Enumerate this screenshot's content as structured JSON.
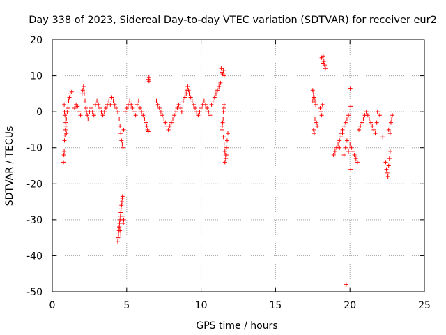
{
  "chart_data": {
    "type": "scatter",
    "title": "Day 338 of 2023, Sidereal Day-to-day VTEC variation (SDTVAR) for receiver eur2",
    "xlabel": "GPS time / hours",
    "ylabel": "SDTVAR / TECUs",
    "xlim": [
      0,
      25
    ],
    "ylim": [
      -50,
      20
    ],
    "xticks": [
      0,
      5,
      10,
      15,
      20,
      25
    ],
    "yticks": [
      -50,
      -40,
      -30,
      -20,
      -10,
      0,
      10,
      20
    ],
    "grid": true,
    "marker": "+",
    "color": "#ff0000",
    "series": [
      {
        "name": "SDTVAR",
        "x": [
          0.75,
          0.78,
          0.8,
          0.82,
          0.85,
          0.88,
          0.9,
          0.95,
          1.0,
          1.05,
          1.1,
          1.15,
          1.2,
          1.3,
          0.8,
          0.82,
          0.85,
          0.9,
          0.92,
          0.95,
          1.5,
          1.6,
          1.7,
          1.8,
          1.9,
          2.0,
          2.05,
          2.1,
          2.15,
          2.2,
          2.25,
          2.3,
          2.35,
          2.4,
          2.5,
          2.6,
          2.7,
          2.8,
          2.9,
          3.0,
          3.1,
          3.2,
          3.3,
          3.4,
          3.5,
          3.6,
          3.7,
          3.8,
          3.9,
          4.0,
          4.1,
          4.2,
          4.3,
          4.4,
          4.5,
          4.55,
          4.6,
          4.65,
          4.7,
          4.75,
          4.4,
          4.42,
          4.45,
          4.48,
          4.5,
          4.52,
          4.55,
          4.58,
          4.6,
          4.62,
          4.65,
          4.68,
          4.7,
          4.72,
          4.75,
          4.78,
          4.8,
          4.5,
          4.55,
          4.6,
          4.8,
          4.9,
          5.0,
          5.1,
          5.2,
          5.3,
          5.4,
          5.5,
          5.6,
          5.7,
          5.8,
          5.9,
          6.0,
          6.1,
          6.2,
          6.3,
          6.35,
          6.4,
          6.45,
          6.5,
          6.5,
          6.45,
          7.0,
          7.1,
          7.2,
          7.3,
          7.4,
          7.5,
          7.6,
          7.7,
          7.8,
          7.9,
          8.0,
          8.1,
          8.2,
          8.3,
          8.4,
          8.5,
          8.6,
          8.7,
          8.8,
          8.9,
          9.0,
          9.05,
          9.1,
          9.15,
          9.2,
          9.3,
          9.4,
          9.5,
          9.6,
          9.7,
          9.8,
          9.9,
          10.0,
          10.1,
          10.2,
          10.3,
          10.4,
          10.5,
          10.6,
          10.7,
          10.8,
          10.9,
          11.0,
          11.1,
          11.2,
          11.3,
          11.35,
          11.4,
          11.45,
          11.5,
          11.55,
          11.6,
          11.65,
          11.7,
          11.75,
          11.8,
          11.5,
          11.55,
          11.4,
          11.42,
          11.45,
          11.48,
          11.5,
          11.52,
          11.55,
          11.6,
          11.65,
          11.7,
          17.5,
          17.55,
          17.6,
          17.65,
          17.7,
          17.75,
          17.8,
          17.55,
          17.6,
          17.65,
          17.5,
          17.55,
          18.0,
          18.05,
          18.1,
          18.15,
          18.2,
          18.25,
          18.3,
          18.35,
          18.1,
          18.2,
          18.9,
          19.0,
          19.1,
          19.2,
          19.3,
          19.4,
          19.5,
          19.6,
          19.7,
          19.8,
          19.9,
          20.0,
          19.3,
          19.4,
          19.5,
          19.6,
          19.7,
          19.8,
          19.9,
          20.05,
          19.75,
          20.05,
          20.02,
          20.1,
          20.2,
          20.3,
          20.4,
          20.5,
          20.6,
          20.7,
          20.8,
          20.9,
          21.0,
          21.1,
          21.2,
          21.3,
          21.4,
          21.5,
          21.6,
          21.7,
          21.8,
          21.85,
          22.0,
          22.2,
          22.4,
          22.45,
          22.5,
          22.55,
          22.6,
          22.65,
          22.7,
          22.75,
          22.8,
          22.85,
          22.6,
          22.7
        ],
        "y": [
          -14,
          -12,
          -11,
          -8,
          -6.5,
          -5,
          -3,
          -2,
          0,
          1,
          3,
          4,
          5,
          5.5,
          2,
          0,
          -1,
          -2,
          -4,
          -6,
          1,
          2,
          1.5,
          0,
          -1,
          5,
          6,
          7,
          5,
          3,
          1,
          0,
          -1,
          -2,
          0,
          1,
          0,
          -1,
          2,
          3,
          2,
          1,
          0,
          -1,
          0,
          1,
          2,
          3,
          2,
          4,
          3,
          2,
          1,
          0,
          -2,
          -4,
          -6,
          -8,
          -9,
          -10,
          -36,
          -35,
          -34,
          -33,
          -32,
          -31,
          -30,
          -29,
          -28,
          -27,
          -26,
          -25,
          -24,
          -23.5,
          -29,
          -31,
          -30,
          -32,
          -33,
          -34,
          -5,
          0,
          1,
          2,
          3,
          2,
          1,
          0,
          -1,
          2,
          3,
          1,
          0,
          -1,
          -2,
          -3,
          -4,
          -5,
          9,
          9.5,
          8.5,
          -5.5,
          3,
          2,
          1,
          0,
          -1,
          -2,
          -3,
          -4,
          -5,
          -4,
          -3,
          -2,
          -1,
          0,
          1,
          2,
          1,
          0,
          3,
          4,
          5,
          6,
          7,
          6,
          5,
          4,
          3,
          2,
          1,
          0,
          -1,
          0,
          1,
          2,
          3,
          2,
          1,
          0,
          -1,
          2,
          3,
          4,
          5,
          6,
          7,
          8,
          12,
          11,
          10.5,
          11.5,
          10,
          -14,
          -12,
          -10,
          -8,
          -6,
          -7,
          -9,
          -5,
          -4,
          -3,
          -2,
          0,
          1,
          2,
          -11,
          -13,
          -12,
          6,
          5,
          4,
          3,
          2,
          -3,
          -4,
          -5,
          -6,
          -2,
          3,
          4,
          1,
          0,
          -1,
          2,
          15.5,
          14,
          13,
          12,
          15,
          13.5,
          -12,
          -11,
          -10,
          -9,
          -8,
          -7,
          -6,
          -12,
          -10,
          -8,
          -11,
          -9,
          -10,
          -6,
          -5,
          -4,
          -3,
          -2,
          -1,
          1.5,
          -48,
          -16,
          6.5,
          -10,
          -11,
          -12,
          -13,
          -14,
          -5,
          -4,
          -3,
          -2,
          -1,
          0,
          -1,
          -2,
          -3,
          -4,
          -5,
          -6,
          -3,
          0,
          -1,
          -7,
          -14,
          -16,
          -17,
          -18,
          -15,
          -13,
          -11,
          -3,
          -2,
          -1,
          -5,
          -6
        ]
      }
    ]
  }
}
